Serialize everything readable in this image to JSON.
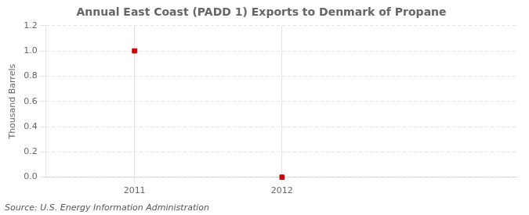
{
  "chart_data": {
    "type": "scatter",
    "title": "Annual East Coast (PADD 1) Exports to Denmark of Propane",
    "ylabel": "Thousand Barrels",
    "annotation": "Source: U.S. Energy Information Administration",
    "x": [
      2011,
      2012
    ],
    "values": [
      1.0,
      0.0
    ],
    "color": "#cc0000",
    "marker": "square",
    "xlim": [
      2010.4,
      2013.6
    ],
    "xticks": [
      2011,
      2012
    ],
    "ylim": [
      0.0,
      1.2
    ],
    "yticks": [
      {
        "value": 0.0,
        "label": "0.0"
      },
      0.2,
      0.4,
      0.6,
      0.8,
      {
        "value": 1.0,
        "label": "1.0"
      },
      1.2
    ],
    "grid": true
  }
}
